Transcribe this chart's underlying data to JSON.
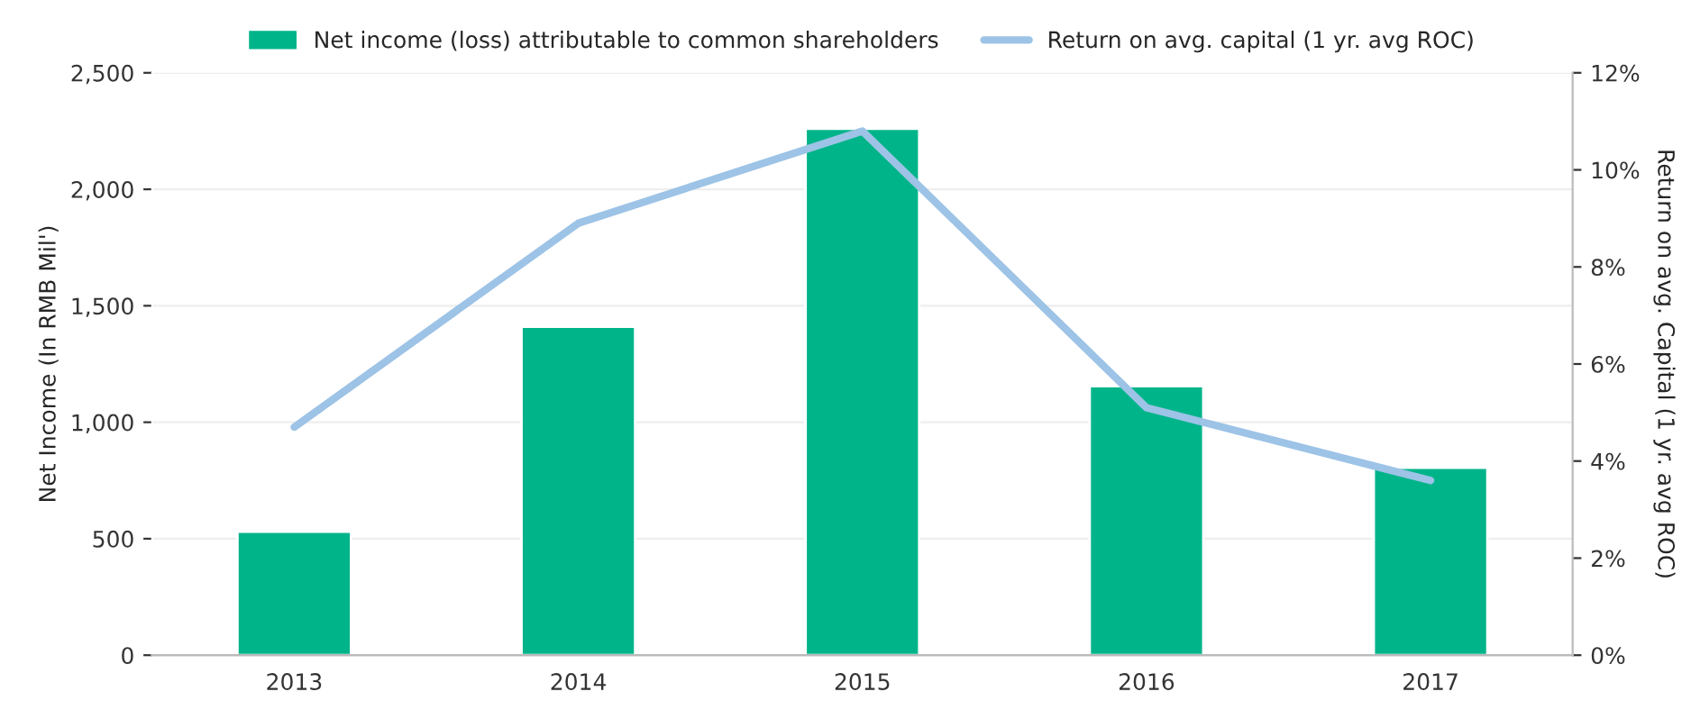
{
  "chart_data": {
    "type": "bar",
    "categories": [
      "2013",
      "2014",
      "2015",
      "2016",
      "2017"
    ],
    "ylabel": "Net Income (In RMB Mil')",
    "y2label": "Return on avg. Capital (1 yr. avg ROC)",
    "series": [
      {
        "name": "Net income (loss) attributable to common shareholders",
        "color": "#00b48a",
        "values": [
          530,
          1410,
          2260,
          1155,
          805
        ]
      },
      {
        "name": "Return on avg. capital (1 yr. avg ROC)",
        "type": "line",
        "axis": "y2",
        "color": "#9dc3e6",
        "values": [
          4.7,
          8.9,
          10.8,
          5.1,
          3.6
        ]
      }
    ],
    "ylim": [
      0,
      2500
    ],
    "yticks": [
      {
        "value": 0,
        "label": "0"
      },
      {
        "value": 500,
        "label": "500"
      },
      {
        "value": 1000,
        "label": "1,000"
      },
      {
        "value": 1500,
        "label": "1,500"
      },
      {
        "value": 2000,
        "label": "2,000"
      },
      {
        "value": 2500,
        "label": "2,500"
      }
    ],
    "y2lim": [
      0,
      12
    ],
    "y2ticks": [
      {
        "value": 0,
        "label": "0%"
      },
      {
        "value": 2,
        "label": "2%"
      },
      {
        "value": 4,
        "label": "4%"
      },
      {
        "value": 6,
        "label": "6%"
      },
      {
        "value": 8,
        "label": "8%"
      },
      {
        "value": 10,
        "label": "10%"
      },
      {
        "value": 12,
        "label": "12%"
      }
    ],
    "grid": "y",
    "legend": "top",
    "marker": "none",
    "line_style": "solid"
  }
}
